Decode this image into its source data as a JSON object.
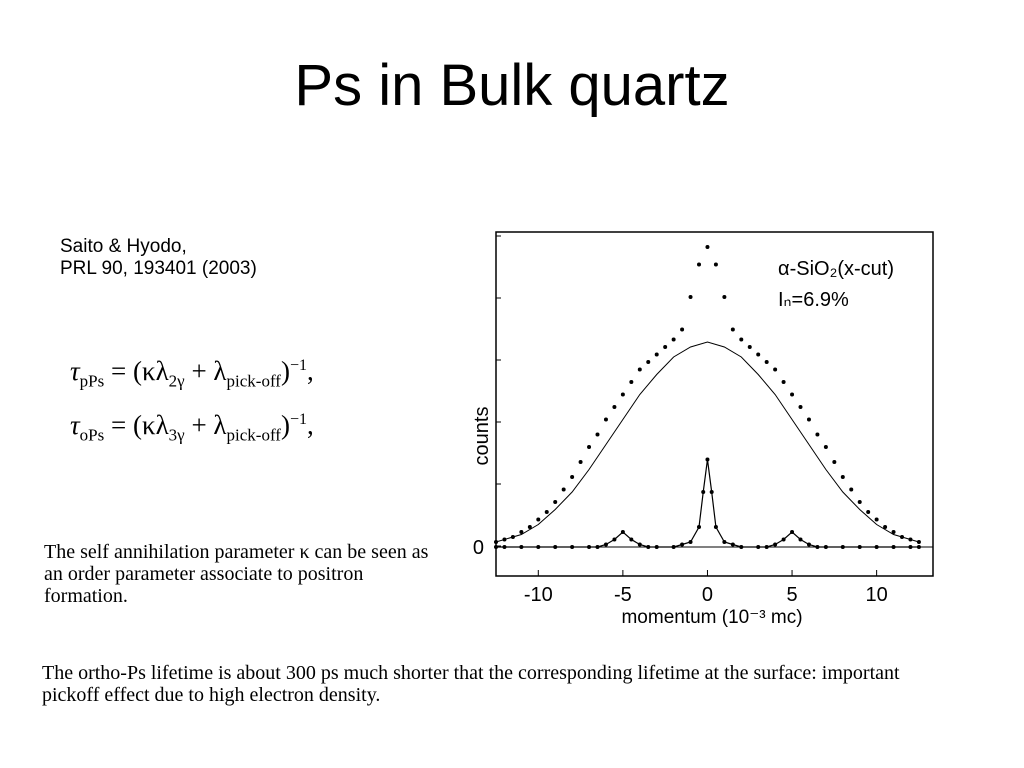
{
  "slide": {
    "title": "Ps in Bulk quartz",
    "reference_line1": "Saito & Hyodo,",
    "reference_line2": "PRL 90, 193401 (2003)",
    "formula_pps": {
      "tau": "τ",
      "tau_sub": "pPs",
      "body": "= (κλ",
      "lambda_sub": "2γ",
      "plus": "+ λ",
      "pick_sub": "pick-off",
      "close": ")",
      "exp": "−1",
      "comma": ","
    },
    "formula_ops": {
      "tau": "τ",
      "tau_sub": "oPs",
      "body": "= (κλ",
      "lambda_sub": "3γ",
      "plus": "+ λ",
      "pick_sub": "pick-off",
      "close": ")",
      "exp": "−1",
      "comma": ","
    },
    "note_kappa": "The self annihilation parameter κ can be seen  as an order parameter associate to positron formation.",
    "note_lifetime": "The ortho-Ps lifetime is about 300 ps much shorter that the corresponding lifetime at the surface: important pickoff effect due to high electron density."
  },
  "chart_data": {
    "type": "scatter",
    "xlabel": "momentum (10⁻³ mc)",
    "ylabel": "counts",
    "x_ticks": [
      "-10",
      "-5",
      "0",
      "5",
      "10"
    ],
    "y_tick_labels": [
      "0"
    ],
    "xlim": [
      -12.5,
      12.8
    ],
    "ylim": [
      -0.06,
      1.26
    ],
    "annotation_line1": "α-SiO₂(x-cut)",
    "annotation_line2": "Iₙ=6.9%",
    "series": [
      {
        "style": "dots",
        "x": [
          -12.5,
          -12,
          -11.5,
          -11,
          -10.5,
          -10,
          -9.5,
          -9,
          -8.5,
          -8,
          -7.5,
          -7,
          -6.5,
          -6,
          -5.5,
          -5,
          -4.5,
          -4,
          -3.5,
          -3,
          -2.5,
          -2,
          -1.5,
          -1,
          -0.5,
          0,
          0.5,
          1,
          1.5,
          2,
          2.5,
          3,
          3.5,
          4,
          4.5,
          5,
          5.5,
          6,
          6.5,
          7,
          7.5,
          8,
          8.5,
          9,
          9.5,
          10,
          10.5,
          11,
          11.5,
          12,
          12.5
        ],
        "y": [
          0.02,
          0.03,
          0.04,
          0.06,
          0.08,
          0.11,
          0.14,
          0.18,
          0.23,
          0.28,
          0.34,
          0.4,
          0.45,
          0.51,
          0.56,
          0.61,
          0.66,
          0.71,
          0.74,
          0.77,
          0.8,
          0.83,
          0.87,
          1.0,
          1.13,
          1.2,
          1.13,
          1.0,
          0.87,
          0.83,
          0.8,
          0.77,
          0.74,
          0.71,
          0.66,
          0.61,
          0.56,
          0.51,
          0.45,
          0.4,
          0.34,
          0.28,
          0.23,
          0.18,
          0.14,
          0.11,
          0.08,
          0.06,
          0.04,
          0.03,
          0.02
        ]
      },
      {
        "style": "line",
        "x": [
          -12.5,
          -11,
          -10,
          -9,
          -8,
          -7,
          -6,
          -5,
          -4,
          -3,
          -2,
          -1,
          0,
          1,
          2,
          3,
          4,
          5,
          6,
          7,
          8,
          9,
          10,
          11,
          12.5
        ],
        "y": [
          0.02,
          0.05,
          0.09,
          0.15,
          0.22,
          0.31,
          0.41,
          0.51,
          0.61,
          0.69,
          0.76,
          0.8,
          0.82,
          0.8,
          0.76,
          0.69,
          0.61,
          0.51,
          0.41,
          0.31,
          0.22,
          0.15,
          0.09,
          0.05,
          0.02
        ]
      },
      {
        "style": "dots-line",
        "x": [
          -12.5,
          -12,
          -11,
          -10,
          -9,
          -8,
          -7,
          -6.5,
          -6,
          -5.5,
          -5,
          -4.5,
          -4,
          -3.5,
          -3,
          -2,
          -1.5,
          -1,
          -0.5,
          -0.25,
          0,
          0.25,
          0.5,
          1,
          1.5,
          2,
          3,
          3.5,
          4,
          4.5,
          5,
          5.5,
          6,
          6.5,
          7,
          8,
          9,
          10,
          11,
          12,
          12.5
        ],
        "y": [
          0.0,
          0.0,
          0.0,
          0.0,
          0.0,
          0.0,
          0.0,
          0.0,
          0.01,
          0.03,
          0.06,
          0.03,
          0.01,
          0.0,
          0.0,
          0.0,
          0.01,
          0.02,
          0.08,
          0.22,
          0.35,
          0.22,
          0.08,
          0.02,
          0.01,
          0.0,
          0.0,
          0.0,
          0.01,
          0.03,
          0.06,
          0.03,
          0.01,
          0.0,
          0.0,
          0.0,
          0.0,
          0.0,
          0.0,
          0.0,
          0.0
        ]
      }
    ]
  }
}
